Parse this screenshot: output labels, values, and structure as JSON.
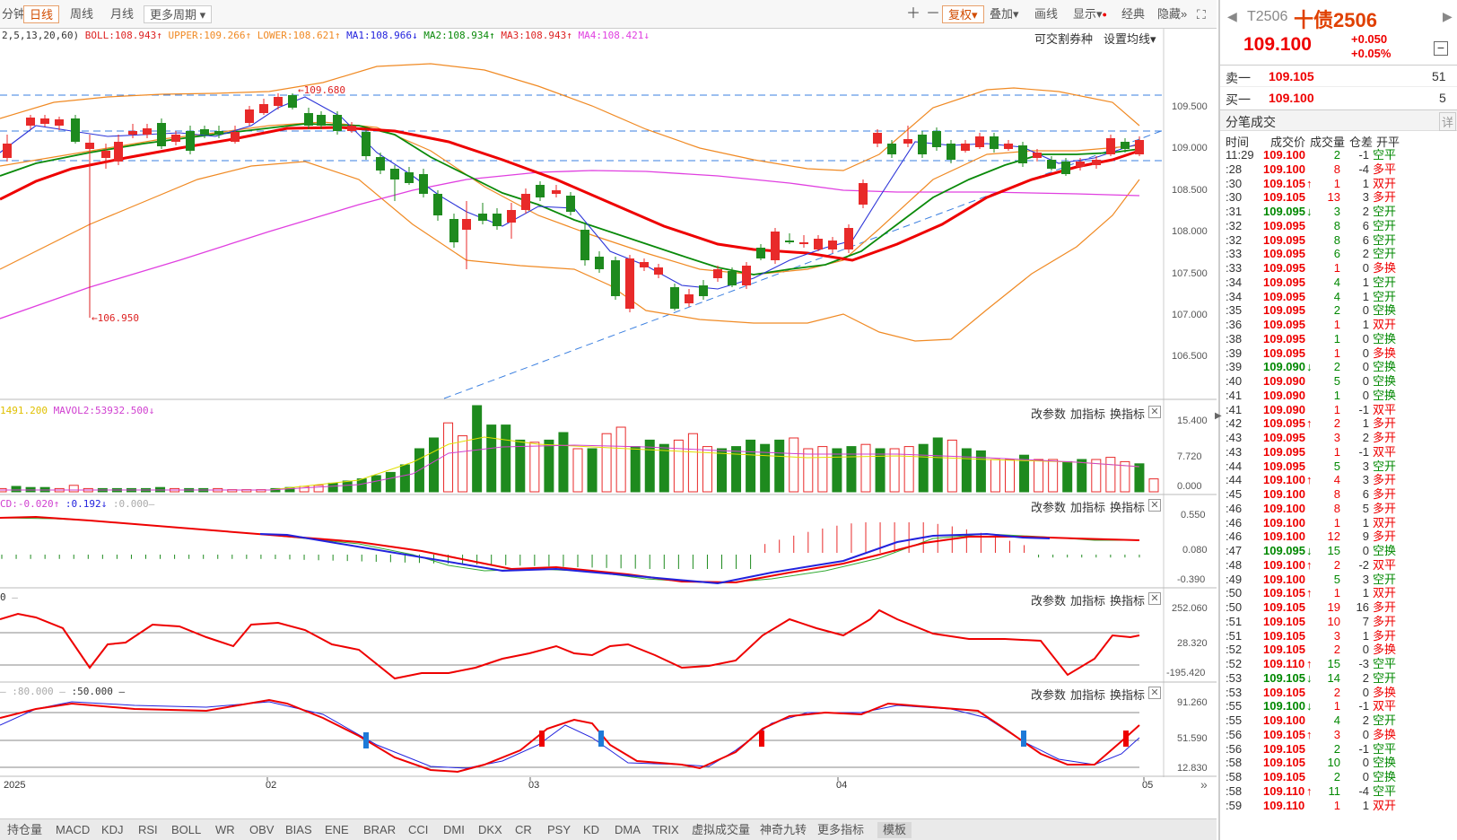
{
  "toolbar": {
    "tabs": [
      "分钟",
      "日线",
      "周线",
      "月线",
      "更多周期"
    ],
    "active_tab": "日线",
    "right_items": [
      "复权",
      "叠加",
      "画线",
      "显示",
      "经典",
      "隐藏"
    ]
  },
  "main_panel": {
    "legend_prefix": "2,5,13,20,60)",
    "boll": "BOLL:108.943",
    "upper": "UPPER:109.266",
    "lower": "LOWER:108.621",
    "ma1": "MA1:108.966",
    "ma2": "MA2:108.934",
    "ma3": "MA3:108.943",
    "ma4": "MA4:108.421",
    "right_links": [
      "可交割券种",
      "设置均线"
    ],
    "price_ticks": [
      "109.500",
      "109.000",
      "108.500",
      "108.000",
      "107.500",
      "107.000",
      "106.500"
    ],
    "high_label": "109.680",
    "low_label": "106.950"
  },
  "vol_panel": {
    "legend1": "1491.200",
    "legend2": "MAVOL2:53932.500",
    "ticks": [
      "15.400",
      "7.720",
      "0.000"
    ]
  },
  "macd_panel": {
    "legend1": "CD:-0.020",
    "legend2": ":0.192",
    "legend3": ":0.000",
    "ticks": [
      "0.550",
      "0.080",
      "-0.390"
    ]
  },
  "rsi_panel": {
    "legend1": "0",
    "ticks": [
      "252.060",
      "28.320",
      "-195.420"
    ]
  },
  "kdj_panel": {
    "legend1": ":80.000",
    "legend2": ":50.000",
    "ticks": [
      "91.260",
      "51.590",
      "12.830"
    ]
  },
  "panel_tools": [
    "改参数",
    "加指标",
    "换指标"
  ],
  "x_axis": [
    "2025",
    "02",
    "03",
    "04",
    "05"
  ],
  "bottom_tabs": [
    "持仓量",
    "MACD",
    "KDJ",
    "RSI",
    "BOLL",
    "WR",
    "OBV",
    "BIAS",
    "ENE",
    "BRAR",
    "CCI",
    "DMI",
    "DKX",
    "CR",
    "PSY",
    "KD",
    "DMA",
    "TRIX",
    "虚拟成交量",
    "神奇九转",
    "更多指标",
    "模板"
  ],
  "active_bottom_tab": "模板",
  "quote": {
    "code": "T2506",
    "name": "十债2506",
    "price": "109.100",
    "change": "+0.050",
    "change_pct": "+0.05%",
    "ask_label": "卖一",
    "ask_price": "109.105",
    "ask_vol": "51",
    "bid_label": "买一",
    "bid_price": "109.100",
    "bid_vol": "5",
    "ticks_title": "分笔成交",
    "detail": "详",
    "headers": [
      "时间",
      "成交价",
      "成交量",
      "仓差",
      "开平"
    ]
  },
  "trades": [
    [
      "11:29",
      "109.100",
      "",
      "2",
      "-1",
      "空平"
    ],
    [
      ":28",
      "109.100",
      "",
      "8",
      "-4",
      "多平"
    ],
    [
      ":30",
      "109.105",
      "up",
      "1",
      "1",
      "双开"
    ],
    [
      ":30",
      "109.105",
      "",
      "13",
      "3",
      "多开"
    ],
    [
      ":31",
      "109.095",
      "down",
      "3",
      "2",
      "空开"
    ],
    [
      ":32",
      "109.095",
      "",
      "8",
      "6",
      "空开"
    ],
    [
      ":32",
      "109.095",
      "",
      "8",
      "6",
      "空开"
    ],
    [
      ":33",
      "109.095",
      "",
      "6",
      "2",
      "空开"
    ],
    [
      ":33",
      "109.095",
      "",
      "1",
      "0",
      "多换"
    ],
    [
      ":34",
      "109.095",
      "",
      "4",
      "1",
      "空开"
    ],
    [
      ":34",
      "109.095",
      "",
      "4",
      "1",
      "空开"
    ],
    [
      ":35",
      "109.095",
      "",
      "2",
      "0",
      "空换"
    ],
    [
      ":36",
      "109.095",
      "",
      "1",
      "1",
      "双开"
    ],
    [
      ":38",
      "109.095",
      "",
      "1",
      "0",
      "空换"
    ],
    [
      ":39",
      "109.095",
      "",
      "1",
      "0",
      "多换"
    ],
    [
      ":39",
      "109.090",
      "down",
      "2",
      "0",
      "空换"
    ],
    [
      ":40",
      "109.090",
      "",
      "5",
      "0",
      "空换"
    ],
    [
      ":41",
      "109.090",
      "",
      "1",
      "0",
      "空换"
    ],
    [
      ":41",
      "109.090",
      "",
      "1",
      "-1",
      "双平"
    ],
    [
      ":42",
      "109.095",
      "up",
      "2",
      "1",
      "多开"
    ],
    [
      ":43",
      "109.095",
      "",
      "3",
      "2",
      "多开"
    ],
    [
      ":43",
      "109.095",
      "",
      "1",
      "-1",
      "双平"
    ],
    [
      ":44",
      "109.095",
      "",
      "5",
      "3",
      "空开"
    ],
    [
      ":44",
      "109.100",
      "up",
      "4",
      "3",
      "多开"
    ],
    [
      ":45",
      "109.100",
      "",
      "8",
      "6",
      "多开"
    ],
    [
      ":46",
      "109.100",
      "",
      "8",
      "5",
      "多开"
    ],
    [
      ":46",
      "109.100",
      "",
      "1",
      "1",
      "双开"
    ],
    [
      ":46",
      "109.100",
      "",
      "12",
      "9",
      "多开"
    ],
    [
      ":47",
      "109.095",
      "down",
      "15",
      "0",
      "空换"
    ],
    [
      ":48",
      "109.100",
      "up",
      "2",
      "-2",
      "双平"
    ],
    [
      ":49",
      "109.100",
      "",
      "5",
      "3",
      "空开"
    ],
    [
      ":50",
      "109.105",
      "up",
      "1",
      "1",
      "双开"
    ],
    [
      ":50",
      "109.105",
      "",
      "19",
      "16",
      "多开"
    ],
    [
      ":51",
      "109.105",
      "",
      "10",
      "7",
      "多开"
    ],
    [
      ":51",
      "109.105",
      "",
      "3",
      "1",
      "多开"
    ],
    [
      ":52",
      "109.105",
      "",
      "2",
      "0",
      "多换"
    ],
    [
      ":52",
      "109.110",
      "up",
      "15",
      "-3",
      "空平"
    ],
    [
      ":53",
      "109.105",
      "down",
      "14",
      "2",
      "空开"
    ],
    [
      ":53",
      "109.105",
      "",
      "2",
      "0",
      "多换"
    ],
    [
      ":55",
      "109.100",
      "down",
      "1",
      "-1",
      "双平"
    ],
    [
      ":55",
      "109.100",
      "",
      "4",
      "2",
      "空开"
    ],
    [
      ":56",
      "109.105",
      "up",
      "3",
      "0",
      "多换"
    ],
    [
      ":56",
      "109.105",
      "",
      "2",
      "-1",
      "空平"
    ],
    [
      ":58",
      "109.105",
      "",
      "10",
      "0",
      "空换"
    ],
    [
      ":58",
      "109.105",
      "",
      "2",
      "0",
      "空换"
    ],
    [
      ":58",
      "109.110",
      "up",
      "11",
      "-4",
      "空平"
    ],
    [
      ":59",
      "109.110",
      "",
      "1",
      "1",
      "双开"
    ]
  ]
}
